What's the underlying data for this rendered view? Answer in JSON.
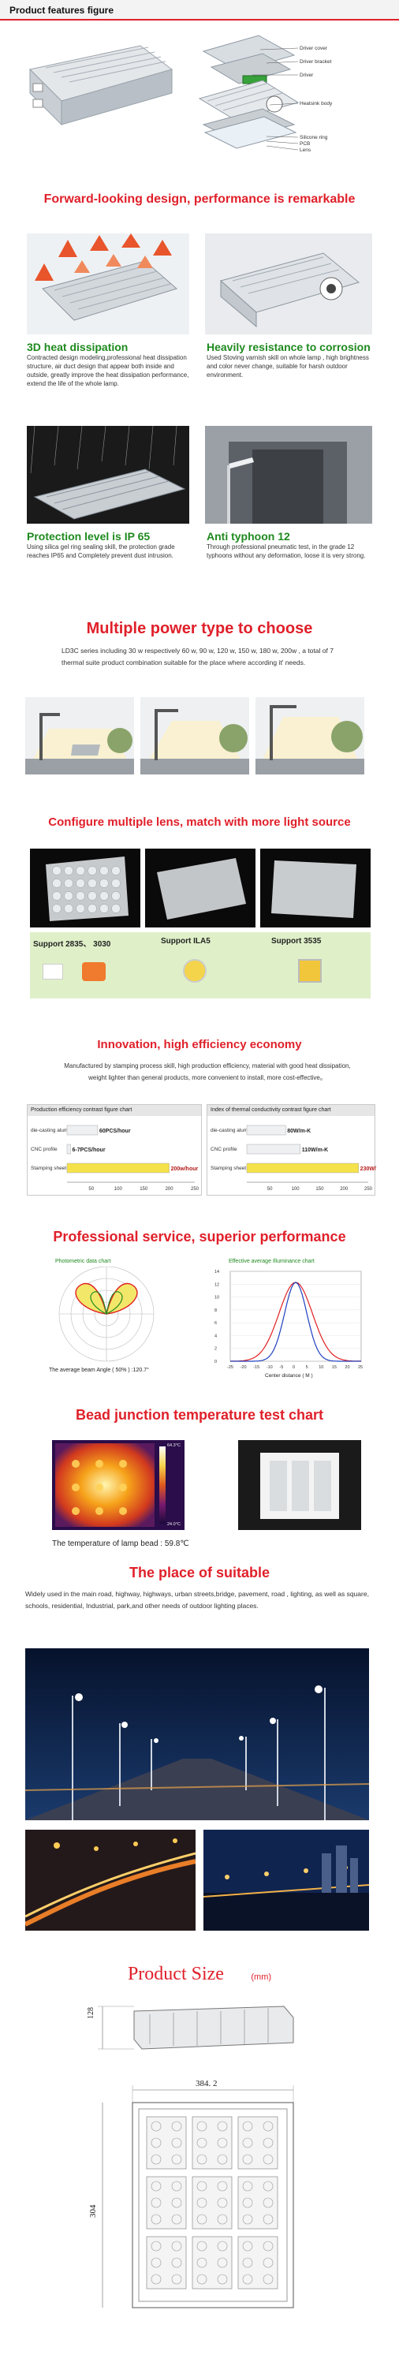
{
  "header": {
    "title": "Product features figure"
  },
  "exploded": {
    "labels": [
      "Driver cover",
      "Driver bracket",
      "Driver",
      "Heatsink body",
      "Silicone ring",
      "PCB",
      "Lens"
    ]
  },
  "sec1": {
    "title": "Forward-looking design, performance is remarkable",
    "f1": {
      "title": "3D heat dissipation",
      "text": "Contracted design modeling,professional heat dissipation structure, air duct design that appear both inside and outside, greatly improve the heat dissipation performance, extend the life of the whole lamp."
    },
    "f2": {
      "title": "Heavily resistance to corrosion",
      "text": "Used Stoving varnish skill on whole lamp , high brightness and color never change, suitable for harsh outdoor environment."
    },
    "f3": {
      "title": "Protection level is IP 65",
      "text": "Using silica gel ring sealing skill, the protection grade reaches IP65 and Completely prevent dust intrusion."
    },
    "f4": {
      "title": "Anti typhoon 12",
      "text": "Through professional pneumatic test, in the grade 12 typhoons without any deformation, loose it is very strong."
    }
  },
  "sec2": {
    "title": "Multiple power type to choose",
    "text": "LD3C series including 30 w respectively 60 w, 90 w, 120 w, 150 w, 180 w, 200w , a total of 7 thermal suite product combination suitable for the place where according it' needs."
  },
  "sec3": {
    "title": "Configure multiple lens, match with more light source",
    "supports": [
      "Support 2835、 3030",
      "Support ILA5",
      "Support  3535"
    ]
  },
  "sec4": {
    "title": "Innovation, high efficiency economy",
    "text": "Manufactured by stamping process skill, high production efficiency, material with good heat dissipation, weight lighter than general products, more convenient to install, more cost-effective。",
    "chart1": {
      "title": "Production efficiency contrast figure chart",
      "rows": [
        {
          "label": "die-casting aluminum",
          "value": 60,
          "text": "60PCS/hour"
        },
        {
          "label": "CNC profile",
          "value": 7,
          "text": "6-7PCS/hour"
        },
        {
          "label": "Stamping sheet",
          "value": 200,
          "text": "200w/hour"
        }
      ],
      "ticks": [
        "50",
        "100",
        "150",
        "200",
        "250"
      ]
    },
    "chart2": {
      "title": "Index of thermal conductivity contrast figure chart",
      "rows": [
        {
          "label": "die-casting aluminum",
          "value": 80,
          "text": "80W/m-K"
        },
        {
          "label": "CNC profile",
          "value": 110,
          "text": "110W/m-K"
        },
        {
          "label": "Stamping sheet",
          "value": 230,
          "text": "230W/m-K"
        }
      ],
      "ticks": [
        "50",
        "100",
        "150",
        "200",
        "250"
      ]
    }
  },
  "sec5": {
    "title": "Professional service, superior performance",
    "photometric": {
      "title": "Photometric data chart",
      "top_ticks": [
        "-180",
        "-150",
        "-120",
        "-90",
        "-60",
        "-30",
        "0"
      ],
      "caption": "The average beam Angle ( 50% ) :120.7°"
    },
    "illuminance": {
      "title": "Effective average Illuminance chart",
      "x_ticks": [
        "-25",
        "-20",
        "-15",
        "-10",
        "-5",
        "0",
        "5",
        "10",
        "15",
        "20",
        "25"
      ],
      "y_ticks": [
        "14",
        "12",
        "10",
        "8",
        "6",
        "4",
        "2",
        "0"
      ],
      "xlabel": "Center distance ( M )"
    }
  },
  "sec6": {
    "title": "Bead junction temperature test chart",
    "scale_top": "64.3°C",
    "scale_bottom": "24.0°C",
    "caption": "The temperature of lamp bead : 59.8℃"
  },
  "sec7": {
    "title": "The place of suitable",
    "text": "Widely used in the main road, highway, highways, urban streets,bridge, pavement, road , lighting, as well as square, schools, residential, Industrial, park,and other needs of outdoor lighting places."
  },
  "sec8": {
    "title": "Product Size",
    "unit": "(mm)",
    "dim_height": "128",
    "dim_width": "384. 2",
    "dim_depth": "304"
  },
  "colors": {
    "accent_red": "#e0202a",
    "green": "#1f8a1f"
  }
}
